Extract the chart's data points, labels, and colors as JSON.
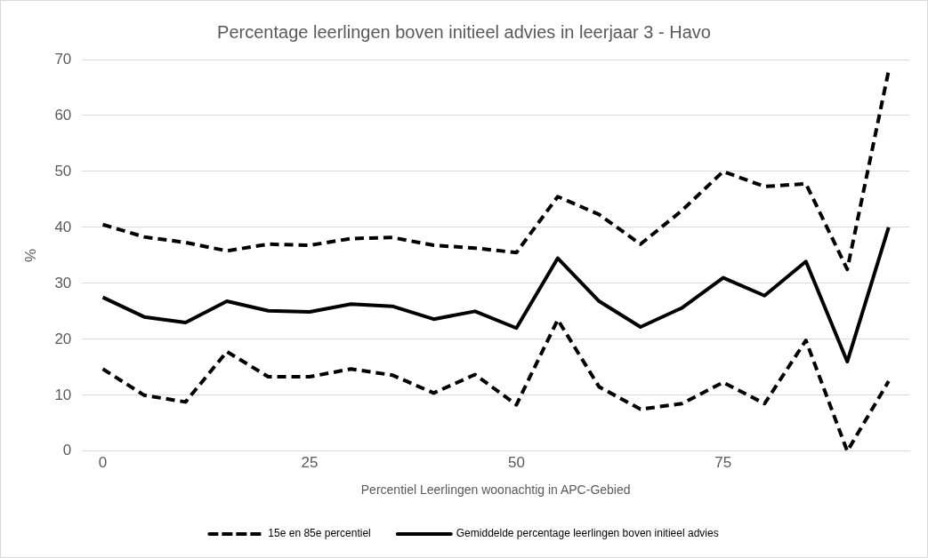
{
  "chart_data": {
    "type": "line",
    "title": "Percentage leerlingen boven initieel advies in leerjaar 3 - Havo",
    "xlabel": "Percentiel Leerlingen woonachtig in APC-Gebied",
    "ylabel": "%",
    "x": [
      0,
      5,
      10,
      15,
      20,
      25,
      30,
      35,
      40,
      45,
      50,
      55,
      60,
      65,
      70,
      75,
      80,
      85,
      90,
      95
    ],
    "xlim": [
      -2.5,
      97.5
    ],
    "xticks": [
      0,
      25,
      50,
      75
    ],
    "ylim": [
      0,
      70
    ],
    "yticks": [
      0,
      10,
      20,
      30,
      40,
      50,
      60,
      70
    ],
    "grid": "y",
    "legend": "bottom",
    "marker": "none",
    "series": [
      {
        "name": "15e en 85e percentiel",
        "color": "#000000",
        "line_style": "dashed",
        "values": [
          40.5,
          38.3,
          37.3,
          35.8,
          37,
          36.8,
          38,
          38.2,
          36.8,
          36.3,
          35.5,
          45.5,
          42.3,
          37,
          43,
          50,
          47.3,
          47.8,
          32.5,
          68
        ]
      },
      {
        "color": "#000000",
        "line_style": "dashed",
        "values": [
          14.7,
          10,
          8.8,
          17.8,
          13.3,
          13.3,
          14.7,
          13.6,
          10.4,
          13.7,
          8.3,
          23.5,
          11.5,
          7.5,
          8.5,
          12.3,
          8.5,
          19.8,
          0,
          12.5
        ]
      },
      {
        "name": "Gemiddelde percentage leerlingen boven initieel advies",
        "color": "#000000",
        "line_style": "solid",
        "values": [
          27.5,
          24,
          23,
          26.8,
          25.1,
          24.9,
          26.3,
          25.9,
          23.6,
          25,
          22,
          34.5,
          26.8,
          22.2,
          25.6,
          31,
          27.8,
          33.9,
          16,
          40
        ]
      }
    ]
  }
}
